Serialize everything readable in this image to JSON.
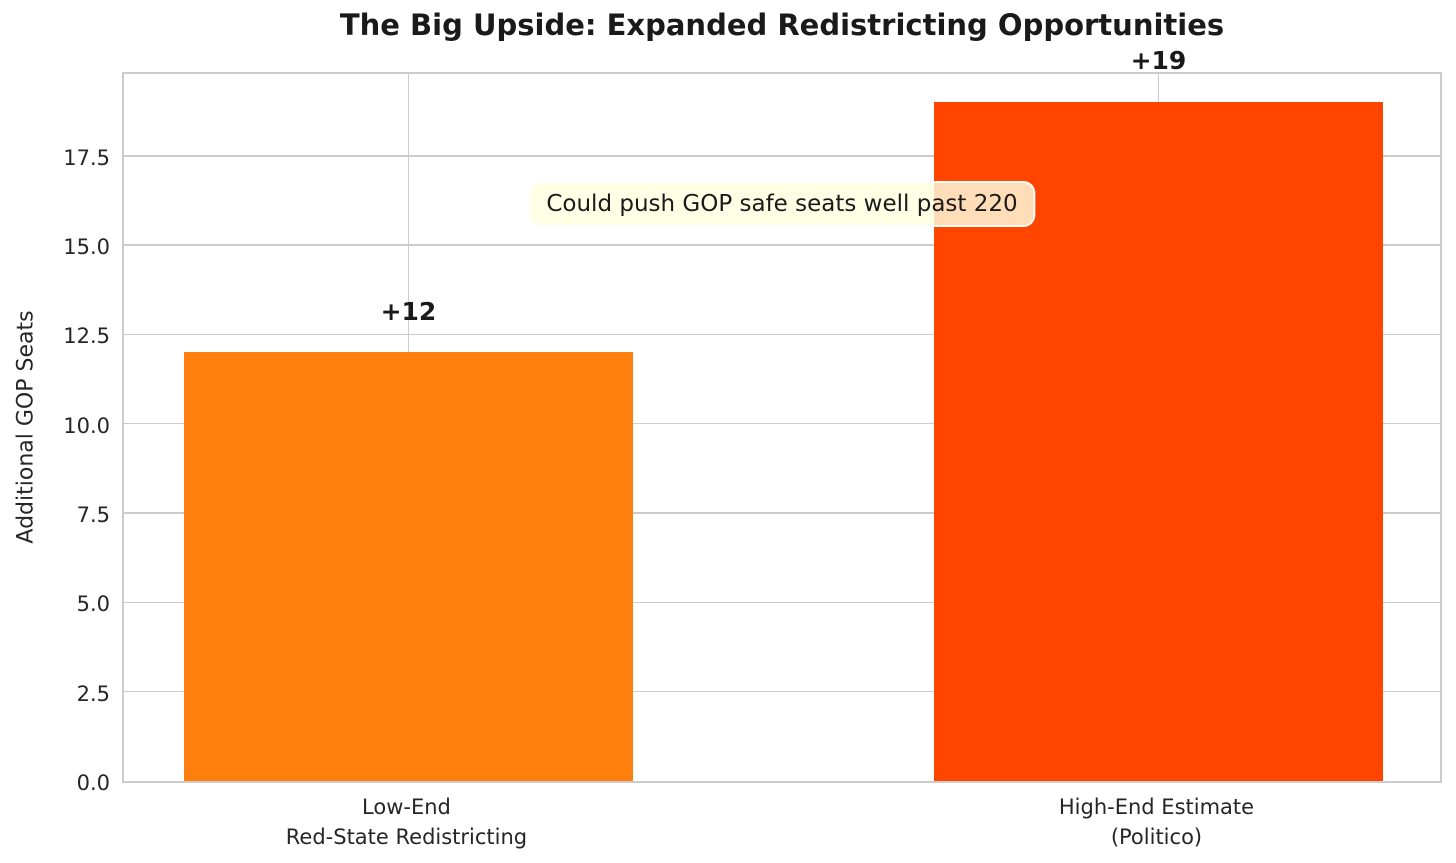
{
  "chart_data": {
    "type": "bar",
    "title": "The Big Upside: Expanded Redistricting Opportunities",
    "xlabel": "",
    "ylabel": "Additional GOP Seats",
    "categories": [
      "Low-End\nRed-State Redistricting",
      "High-End Estimate\n(Politico)"
    ],
    "values": [
      12,
      19
    ],
    "bar_labels": [
      "+12",
      "+19"
    ],
    "bar_colors": [
      "#ff7f0e",
      "#ff4500"
    ],
    "ylim": [
      0,
      19.9
    ],
    "yticks": [
      0.0,
      2.5,
      5.0,
      7.5,
      10.0,
      12.5,
      15.0,
      17.5
    ],
    "grid": true,
    "legend_position": "none",
    "annotation": {
      "text": "Could push GOP safe seats well past 220",
      "bg_color": "#ffffe0",
      "y_center": 16.2
    },
    "style": {
      "grid_color": "#cccccc",
      "text_color": "#262626"
    }
  }
}
